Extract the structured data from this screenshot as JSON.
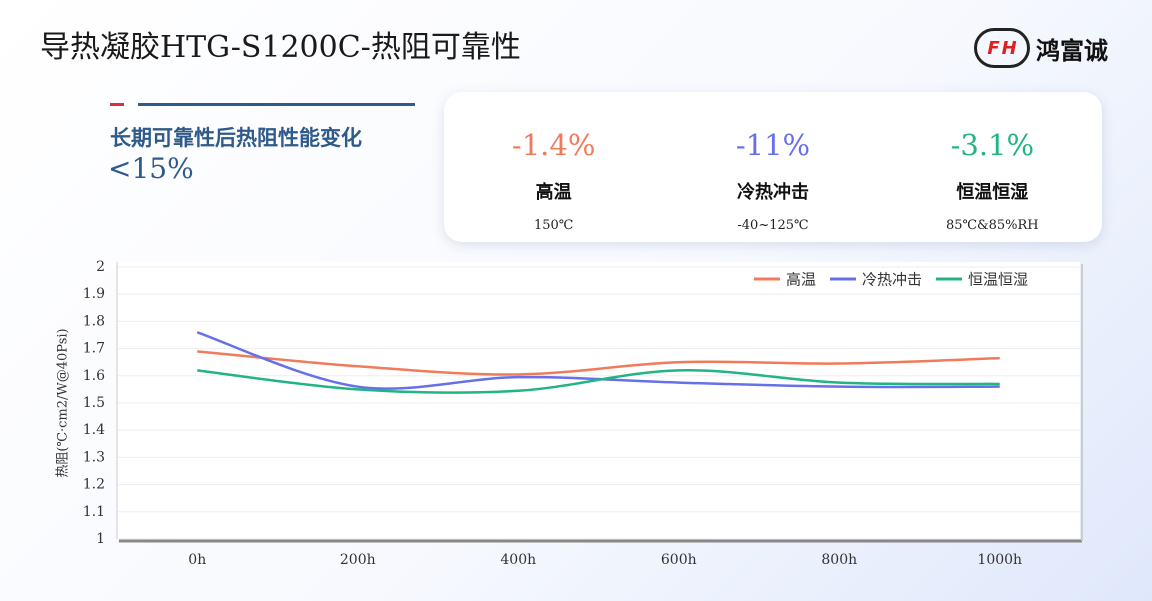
{
  "header": {
    "title": "导热凝胶HTG-S1200C-热阻可靠性",
    "logo_letters": [
      "F",
      "H"
    ],
    "logo_text": "鸿富诚"
  },
  "summary": {
    "text": "长期可靠性后热阻性能变化",
    "value": "<15%"
  },
  "cards": [
    {
      "change": "-1.4%",
      "test": "高温",
      "condition": "150℃",
      "color": "#f07b5a"
    },
    {
      "change": "-11%",
      "test": "冷热冲击",
      "condition": "-40~125℃",
      "color": "#6670e8"
    },
    {
      "change": "-3.1%",
      "test": "恒温恒湿",
      "condition": "85℃&85%RH",
      "color": "#22b386"
    }
  ],
  "chart_data": {
    "type": "line",
    "y_label": "热阻(℃·cm2/W@40Psi)",
    "categories": [
      "0h",
      "200h",
      "400h",
      "600h",
      "800h",
      "1000h"
    ],
    "series": [
      {
        "name": "高温",
        "color": "#f07b5a",
        "values": [
          1.69,
          1.635,
          1.605,
          1.65,
          1.645,
          1.665
        ]
      },
      {
        "name": "冷热冲击",
        "color": "#6670e8",
        "values": [
          1.76,
          1.56,
          1.595,
          1.575,
          1.56,
          1.56
        ]
      },
      {
        "name": "恒温恒湿",
        "color": "#22b386",
        "values": [
          1.62,
          1.55,
          1.545,
          1.62,
          1.575,
          1.57
        ]
      }
    ],
    "ylim": [
      1,
      2
    ],
    "yticks": [
      1,
      1.1,
      1.2,
      1.3,
      1.4,
      1.5,
      1.6,
      1.7,
      1.8,
      1.9,
      2
    ],
    "grid": true,
    "legend": "top-right",
    "smooth": true
  }
}
